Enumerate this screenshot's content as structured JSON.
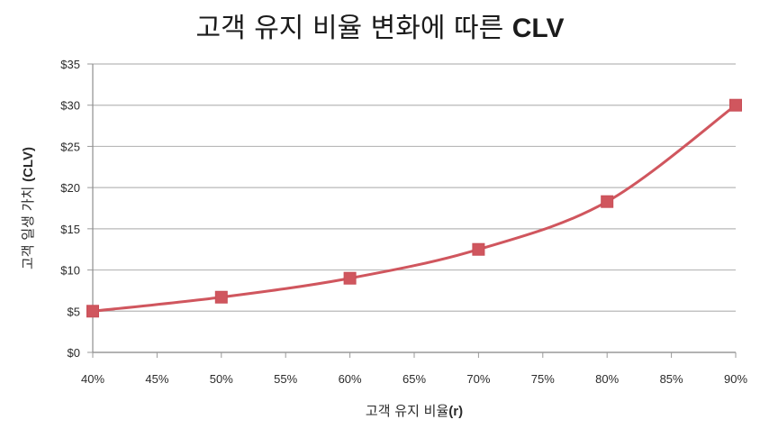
{
  "chart_data": {
    "type": "line",
    "title": {
      "prefix": "고객 유지 비율 변화에 따른 ",
      "suffix": "CLV"
    },
    "xlabel": {
      "prefix": "고객 유지 비율",
      "suffix": "(r)"
    },
    "ylabel": {
      "prefix": "고객 일생 가치 ",
      "suffix": "(CLV)"
    },
    "x_ticks": [
      "40%",
      "45%",
      "50%",
      "55%",
      "60%",
      "65%",
      "70%",
      "75%",
      "80%",
      "85%",
      "90%"
    ],
    "y_ticks": [
      "$0",
      "$5",
      "$10",
      "$15",
      "$20",
      "$25",
      "$30",
      "$35"
    ],
    "xlim": [
      0.4,
      0.9
    ],
    "ylim": [
      0,
      35
    ],
    "grid": true,
    "series": [
      {
        "x": [
          0.4,
          0.5,
          0.6,
          0.7,
          0.8,
          0.9
        ],
        "y": [
          5,
          6.7,
          9,
          12.5,
          18.3,
          30
        ],
        "color": "#d0565e",
        "marker": "square",
        "curve": "smooth"
      }
    ]
  }
}
